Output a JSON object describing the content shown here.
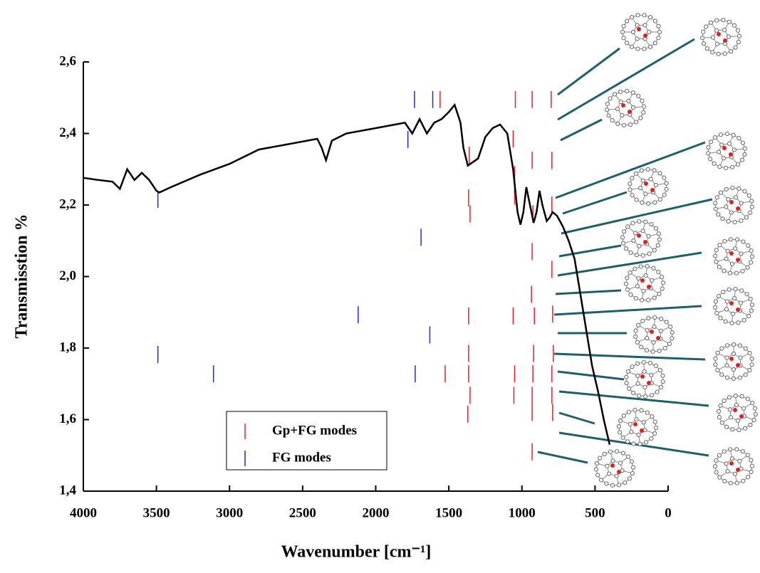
{
  "chart_data": {
    "type": "line",
    "x_label": "Wavenumber [cm⁻¹]",
    "y_label": "Transmisstion %",
    "xlim": [
      4000,
      0
    ],
    "ylim": [
      1.4,
      2.6
    ],
    "xticks": [
      4000,
      3500,
      3000,
      2500,
      2000,
      1500,
      1000,
      500,
      0
    ],
    "yticks": [
      {
        "value": 1.4,
        "label": "1,4"
      },
      {
        "value": 1.6,
        "label": "1,6"
      },
      {
        "value": 1.8,
        "label": "1,8"
      },
      {
        "value": 2.0,
        "label": "2,0"
      },
      {
        "value": 2.2,
        "label": "2,2"
      },
      {
        "value": 2.4,
        "label": "2,4"
      },
      {
        "value": 2.6,
        "label": "2,6"
      }
    ],
    "color": "#000000",
    "x": [
      4000,
      3900,
      3800,
      3750,
      3700,
      3650,
      3600,
      3550,
      3500,
      3480,
      3400,
      3200,
      3000,
      2800,
      2600,
      2400,
      2370,
      2340,
      2300,
      2200,
      2000,
      1800,
      1750,
      1700,
      1650,
      1600,
      1550,
      1500,
      1460,
      1420,
      1400,
      1370,
      1300,
      1250,
      1200,
      1150,
      1100,
      1060,
      1030,
      1010,
      990,
      970,
      940,
      920,
      900,
      880,
      860,
      830,
      810,
      790,
      760,
      720,
      680,
      640,
      600,
      560,
      520,
      480,
      440,
      400
    ],
    "values": [
      2.276,
      2.27,
      2.265,
      2.245,
      2.3,
      2.27,
      2.29,
      2.27,
      2.24,
      2.235,
      2.25,
      2.285,
      2.315,
      2.355,
      2.37,
      2.385,
      2.36,
      2.325,
      2.38,
      2.4,
      2.415,
      2.43,
      2.4,
      2.44,
      2.4,
      2.43,
      2.44,
      2.46,
      2.48,
      2.43,
      2.36,
      2.31,
      2.33,
      2.39,
      2.415,
      2.425,
      2.4,
      2.3,
      2.18,
      2.145,
      2.18,
      2.25,
      2.19,
      2.15,
      2.18,
      2.24,
      2.2,
      2.155,
      2.165,
      2.18,
      2.17,
      2.14,
      2.1,
      2.05,
      1.95,
      1.85,
      1.75,
      1.68,
      1.6,
      1.53
    ],
    "sticks": [
      {
        "name": "Gp+FG modes",
        "color": "#e8202a",
        "x": [
          1560,
          1045,
          930,
          800,
          1360,
          1060,
          1050,
          930,
          795,
          1365,
          1355,
          1050,
          925,
          795,
          930,
          795,
          935,
          790,
          1365,
          1060,
          915,
          1365,
          920,
          785,
          1525,
          1365,
          1050,
          925,
          795,
          1355,
          1055,
          930,
          795,
          1370,
          930,
          790,
          930
        ],
        "values": [
          2.495,
          2.495,
          2.495,
          2.495,
          2.339,
          2.385,
          2.285,
          2.325,
          2.325,
          2.22,
          2.175,
          2.225,
          2.175,
          2.2,
          2.07,
          2.02,
          1.95,
          1.895,
          1.89,
          1.89,
          1.89,
          1.785,
          1.785,
          1.785,
          1.728,
          1.728,
          1.728,
          1.728,
          1.728,
          1.668,
          1.668,
          1.668,
          1.668,
          1.615,
          1.62,
          1.62,
          1.51
        ]
      },
      {
        "name": "FG modes",
        "color": "#1f2bd6",
        "x": [
          3490,
          1735,
          1610,
          1780,
          1690,
          2120,
          1630,
          3490,
          3110,
          1730
        ],
        "values": [
          2.216,
          2.495,
          2.495,
          2.383,
          2.11,
          1.893,
          1.837,
          1.782,
          1.728,
          1.728
        ]
      }
    ],
    "legend": "lower left"
  }
}
